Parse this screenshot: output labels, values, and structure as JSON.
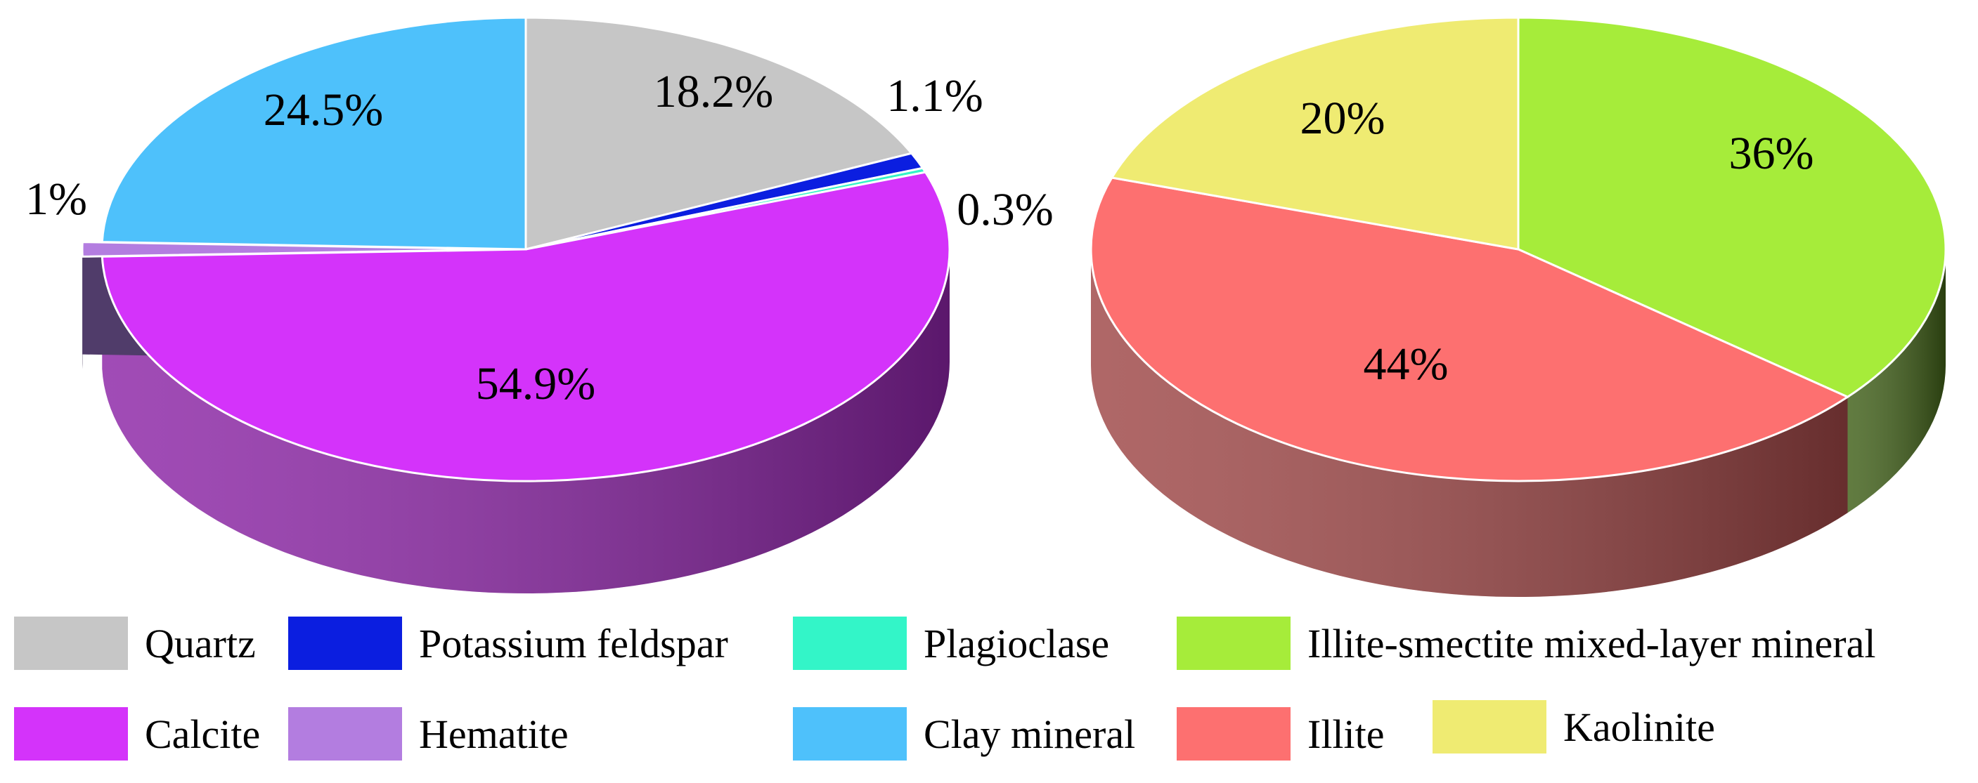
{
  "chart_data": [
    {
      "type": "pie",
      "style": "3d",
      "slices": [
        {
          "name": "Quartz",
          "label": "18.2%",
          "value": 18.2,
          "color": "#c6c6c6",
          "side_color": "#8f8f8f"
        },
        {
          "name": "Potassium feldspar",
          "label": "1.1%",
          "value": 1.1,
          "color": "#0b1ee0",
          "side_color": "#0a1390"
        },
        {
          "name": "Plagioclase",
          "label": "0.3%",
          "value": 0.3,
          "color": "#33f5c8",
          "side_color": "#1e8a6e"
        },
        {
          "name": "Calcite",
          "label": "54.9%",
          "value": 54.9,
          "color": "#d433fa",
          "side_color": "#8c24a6"
        },
        {
          "name": "Hematite",
          "label": "1%",
          "value": 1,
          "color": "#b37de0",
          "side_color": "#503c6a"
        },
        {
          "name": "Clay mineral",
          "label": "24.5%",
          "value": 24.5,
          "color": "#4ec1fb",
          "side_color": "#2f7ea6"
        }
      ]
    },
    {
      "type": "pie",
      "style": "3d",
      "slices": [
        {
          "name": "Illite-smectite mixed-layer mineral",
          "label": "36%",
          "value": 36,
          "color": "#a6ec3a",
          "side_color": "#3f5f17"
        },
        {
          "name": "Illite",
          "label": "44%",
          "value": 44,
          "color": "#fd7070",
          "side_color": "#9e4646"
        },
        {
          "name": "Kaolinite",
          "label": "20%",
          "value": 20,
          "color": "#efeb72",
          "side_color": "#a19e4b"
        }
      ]
    }
  ],
  "legend": [
    {
      "name": "Quartz",
      "color": "#c6c6c6"
    },
    {
      "name": "Potassium feldspar",
      "color": "#0b1ee0"
    },
    {
      "name": "Plagioclase",
      "color": "#33f5c8"
    },
    {
      "name": "Illite-smectite mixed-layer mineral",
      "color": "#a6ec3a"
    },
    {
      "name": "Calcite",
      "color": "#d433fa"
    },
    {
      "name": "Hematite",
      "color": "#b37de0"
    },
    {
      "name": "Clay mineral",
      "color": "#4ec1fb"
    },
    {
      "name": "Illite",
      "color": "#fd7070"
    },
    {
      "name": "Kaolinite",
      "color": "#efeb72"
    }
  ]
}
